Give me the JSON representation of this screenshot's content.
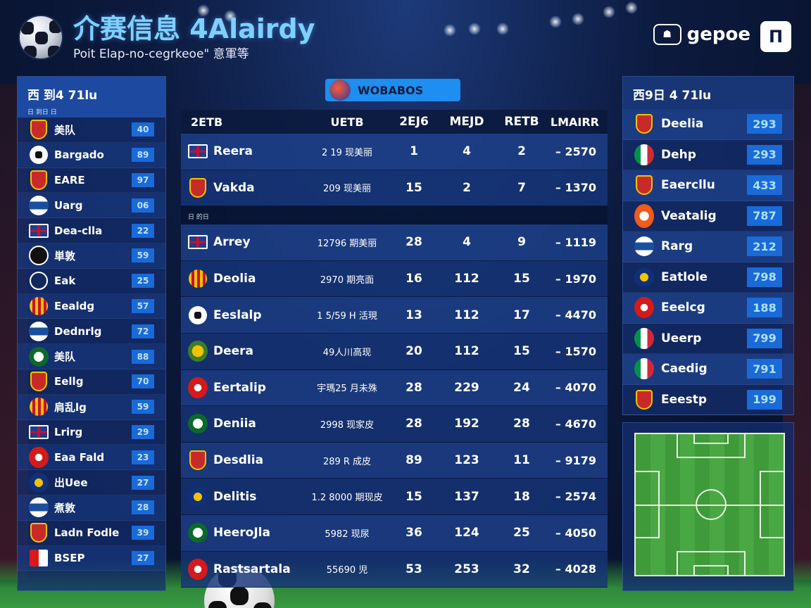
{
  "header": {
    "title": "介赛信息 4Alairdy",
    "subtitle": "Poit Elap-no-cegrkeoe\" 意軍等",
    "brand": "gepoe",
    "brand_icon": "logo-badge-icon",
    "menu_icon": "menu-icon"
  },
  "left_panel": {
    "title": "西 到4 71lu",
    "subtitle": "日 到日 日",
    "items": [
      {
        "name": "美队",
        "value": "40",
        "badge": "b-shield"
      },
      {
        "name": "Bargado",
        "value": "89",
        "badge": "b-ball"
      },
      {
        "name": "EARE",
        "value": "97",
        "badge": "b-shield"
      },
      {
        "name": "Uarg",
        "value": "06",
        "badge": "b-blue"
      },
      {
        "name": "Dea-clla",
        "value": "22",
        "badge": "b-uk"
      },
      {
        "name": "単敦",
        "value": "59",
        "badge": "b-dark"
      },
      {
        "name": "Eak",
        "value": "25",
        "badge": "b-circle"
      },
      {
        "name": "Eealdg",
        "value": "57",
        "badge": "b-stripes"
      },
      {
        "name": "Dednrlg",
        "value": "72",
        "badge": "b-blue"
      },
      {
        "name": "美队",
        "value": "88",
        "badge": "b-green"
      },
      {
        "name": "Eellg",
        "value": "70",
        "badge": "b-shield"
      },
      {
        "name": "肩乱lg",
        "value": "59",
        "badge": "b-stripes"
      },
      {
        "name": "Lrirg",
        "value": "29",
        "badge": "b-uk"
      },
      {
        "name": "Eaa Fald",
        "value": "23",
        "badge": "b-red"
      },
      {
        "name": "出Uee",
        "value": "27",
        "badge": "b-navy"
      },
      {
        "name": "煮敦",
        "value": "28",
        "badge": "b-blue"
      },
      {
        "name": "Ladn Fodle",
        "value": "39",
        "badge": "b-shield"
      },
      {
        "name": "BSEP",
        "value": "27",
        "badge": "b-redwhite"
      }
    ]
  },
  "filter": {
    "label": "WOBABOS"
  },
  "table": {
    "headers": [
      "2ETB",
      "UETB",
      "2EJ6",
      "MEJD",
      "RETB",
      "LMAIRR"
    ],
    "divider_label": "日 的日",
    "top_rows": [
      {
        "team": "Reera",
        "info": "2 19 现美丽",
        "n1": "1",
        "n2": "4",
        "n3": "2",
        "pts": "– 2570",
        "badge": "b-uk"
      },
      {
        "team": "Vakda",
        "info": "209 现美丽",
        "n1": "15",
        "n2": "2",
        "n3": "7",
        "pts": "– 1370",
        "badge": "b-shield"
      }
    ],
    "rows": [
      {
        "team": "Arrey",
        "info": "12796 期美丽",
        "n1": "28",
        "n2": "4",
        "n3": "9",
        "pts": "– 1119",
        "badge": "b-uk"
      },
      {
        "team": "Deolia",
        "info": "2970 期亮面",
        "n1": "16",
        "n2": "112",
        "n3": "15",
        "pts": "– 1970",
        "badge": "b-stripes"
      },
      {
        "team": "Eeslalp",
        "info": "1 5/59 H 活現",
        "n1": "13",
        "n2": "112",
        "n3": "17",
        "pts": "– 4470",
        "badge": "b-ball"
      },
      {
        "team": "Deera",
        "info": "49人川高现",
        "n1": "20",
        "n2": "112",
        "n3": "15",
        "pts": "– 1570",
        "badge": "b-yellow"
      },
      {
        "team": "Eertalip",
        "info": "宇瑪25 月未殊",
        "n1": "28",
        "n2": "229",
        "n3": "24",
        "pts": "– 4070",
        "badge": "b-red"
      },
      {
        "team": "Deniia",
        "info": "2998 现家皮",
        "n1": "28",
        "n2": "192",
        "n3": "28",
        "pts": "– 4670",
        "badge": "b-green"
      },
      {
        "team": "Desdlia",
        "info": "289 R 成皮",
        "n1": "89",
        "n2": "123",
        "n3": "11",
        "pts": "– 9179",
        "badge": "b-shield"
      },
      {
        "team": "Delitis",
        "info": "1.2 8000 期现皮",
        "n1": "15",
        "n2": "137",
        "n3": "18",
        "pts": "– 2574",
        "badge": "b-navy"
      },
      {
        "team": "HeeroJla",
        "info": "5982 现尿",
        "n1": "36",
        "n2": "124",
        "n3": "25",
        "pts": "– 4050",
        "badge": "b-green"
      },
      {
        "team": "Rastsartala",
        "info": "55690 児",
        "n1": "53",
        "n2": "253",
        "n3": "32",
        "pts": "– 4028",
        "badge": "b-red"
      }
    ]
  },
  "right_panel": {
    "title": "西9日 4 71lu",
    "items": [
      {
        "name": "Deelia",
        "value": "293",
        "badge": "b-shield"
      },
      {
        "name": "Dehp",
        "value": "293",
        "badge": "b-it"
      },
      {
        "name": "Eaercllu",
        "value": "433",
        "badge": "b-shield"
      },
      {
        "name": "Veatalig",
        "value": "787",
        "badge": "b-orange"
      },
      {
        "name": "Rarg",
        "value": "212",
        "badge": "b-blue"
      },
      {
        "name": "Eatlole",
        "value": "798",
        "badge": "b-navy"
      },
      {
        "name": "Eeelcg",
        "value": "188",
        "badge": "b-red"
      },
      {
        "name": "Ueerp",
        "value": "799",
        "badge": "b-it"
      },
      {
        "name": "Caedig",
        "value": "791",
        "badge": "b-it"
      },
      {
        "name": "Eeestp",
        "value": "199",
        "badge": "b-shield"
      }
    ]
  }
}
